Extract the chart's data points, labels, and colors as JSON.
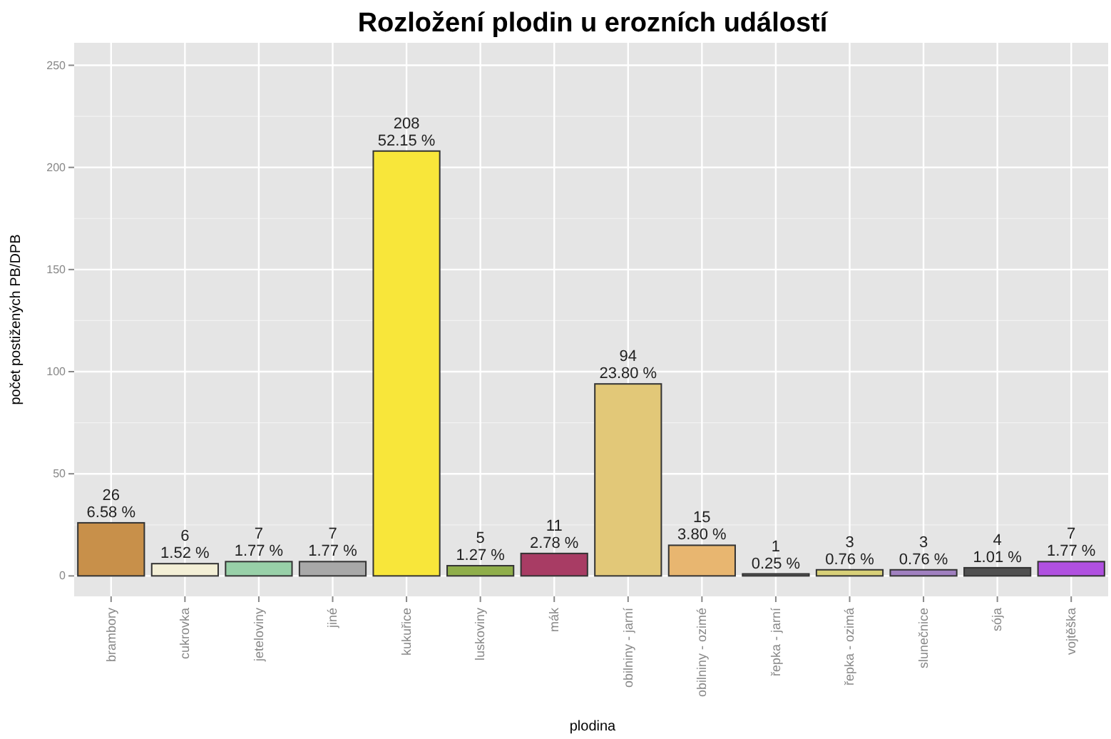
{
  "chart_data": {
    "type": "bar",
    "title": "Rozložení plodin u erozních událostí",
    "xlabel": "plodina",
    "ylabel": "počet postižených PB/DPB",
    "categories": [
      "brambory",
      "cukrovka",
      "jeteloviny",
      "jiné",
      "kukuřice",
      "luskoviny",
      "mák",
      "obilniny - jarní",
      "obilniny - ozimé",
      "řepka - jarní",
      "řepka - ozimá",
      "slunečnice",
      "sója",
      "vojtěška"
    ],
    "values": [
      26,
      6,
      7,
      7,
      208,
      5,
      11,
      94,
      15,
      1,
      3,
      3,
      4,
      7
    ],
    "colors": [
      "#c8904a",
      "#f3efd6",
      "#98d0a8",
      "#a8a8a8",
      "#f8e63a",
      "#8fae4a",
      "#a83c64",
      "#e2c878",
      "#e8b670",
      "#6a6a6a",
      "#d8d078",
      "#a080c0",
      "#505050",
      "#b050e0"
    ],
    "value_labels": [
      "26\n6.58 %",
      "6\n1.52 %",
      "7\n1.77 %",
      "7\n1.77 %",
      "208\n52.15 %",
      "5\n1.27 %",
      "11\n2.78 %",
      "94\n23.80 %",
      "15\n3.80 %",
      "1\n0.25 %",
      "3\n0.76 %",
      "3\n0.76 %",
      "4\n1.01 %",
      "7\n1.77 %"
    ],
    "ylim": [
      -10,
      261
    ],
    "yticks": [
      0,
      50,
      100,
      150,
      200,
      250
    ],
    "grid": true
  }
}
